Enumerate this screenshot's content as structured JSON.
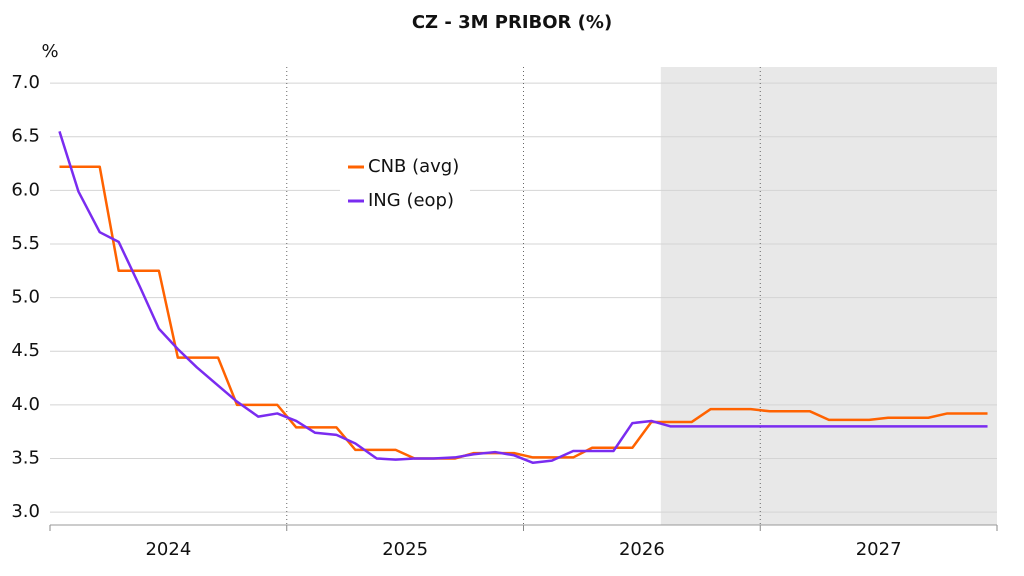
{
  "chart_data": {
    "type": "line",
    "title": "CZ - 3M PRIBOR (%)",
    "y_label": "%",
    "x": [
      2024.04,
      2024.12,
      2024.21,
      2024.29,
      2024.38,
      2024.46,
      2024.54,
      2024.62,
      2024.71,
      2024.79,
      2024.88,
      2024.96,
      2025.04,
      2025.12,
      2025.21,
      2025.29,
      2025.38,
      2025.46,
      2025.54,
      2025.62,
      2025.71,
      2025.79,
      2025.88,
      2025.96,
      2026.04,
      2026.12,
      2026.21,
      2026.29,
      2026.38,
      2026.46,
      2026.54,
      2026.62,
      2026.71,
      2026.79,
      2026.88,
      2026.96,
      2027.04,
      2027.12,
      2027.21,
      2027.29,
      2027.38,
      2027.46,
      2027.54,
      2027.62,
      2027.71,
      2027.79,
      2027.88,
      2027.96
    ],
    "series": [
      {
        "name": "CNB (avg)",
        "color": "#ff6200",
        "values": [
          6.22,
          6.22,
          6.22,
          5.25,
          5.25,
          5.25,
          4.44,
          4.44,
          4.44,
          4.0,
          4.0,
          4.0,
          3.79,
          3.79,
          3.79,
          3.58,
          3.58,
          3.58,
          3.5,
          3.5,
          3.5,
          3.55,
          3.55,
          3.55,
          3.51,
          3.51,
          3.51,
          3.6,
          3.6,
          3.6,
          3.84,
          3.84,
          3.84,
          3.96,
          3.96,
          3.96,
          3.94,
          3.94,
          3.94,
          3.86,
          3.86,
          3.86,
          3.88,
          3.88,
          3.88,
          3.92,
          3.92,
          3.92
        ]
      },
      {
        "name": "ING (eop)",
        "color": "#7a2cf0",
        "values": [
          6.55,
          5.99,
          5.61,
          5.52,
          5.1,
          4.71,
          4.52,
          4.35,
          4.18,
          4.03,
          3.89,
          3.92,
          3.85,
          3.74,
          3.72,
          3.64,
          3.5,
          3.49,
          3.5,
          3.5,
          3.51,
          3.54,
          3.56,
          3.53,
          3.46,
          3.48,
          3.57,
          3.57,
          3.57,
          3.83,
          3.85,
          3.8,
          3.8,
          3.8,
          3.8,
          3.8,
          3.8,
          3.8,
          3.8,
          3.8,
          3.8,
          3.8,
          3.8,
          3.8,
          3.8,
          3.8,
          3.8,
          3.8
        ]
      }
    ],
    "xlim": [
      2024,
      2028
    ],
    "xticks": [
      2024,
      2025,
      2026,
      2027,
      2028
    ],
    "year_labels": [
      "2024",
      "2025",
      "2026",
      "2027"
    ],
    "ylim": [
      2.88,
      7.15
    ],
    "yticks": [
      {
        "value": 3,
        "label": "3.0"
      },
      3.5,
      {
        "value": 4,
        "label": "4.0"
      },
      4.5,
      {
        "value": 5,
        "label": "5.0"
      },
      5.5,
      {
        "value": 6,
        "label": "6.0"
      },
      6.5,
      {
        "value": 7,
        "label": "7.0"
      }
    ],
    "shade_from": 2026.58,
    "grid": true
  }
}
